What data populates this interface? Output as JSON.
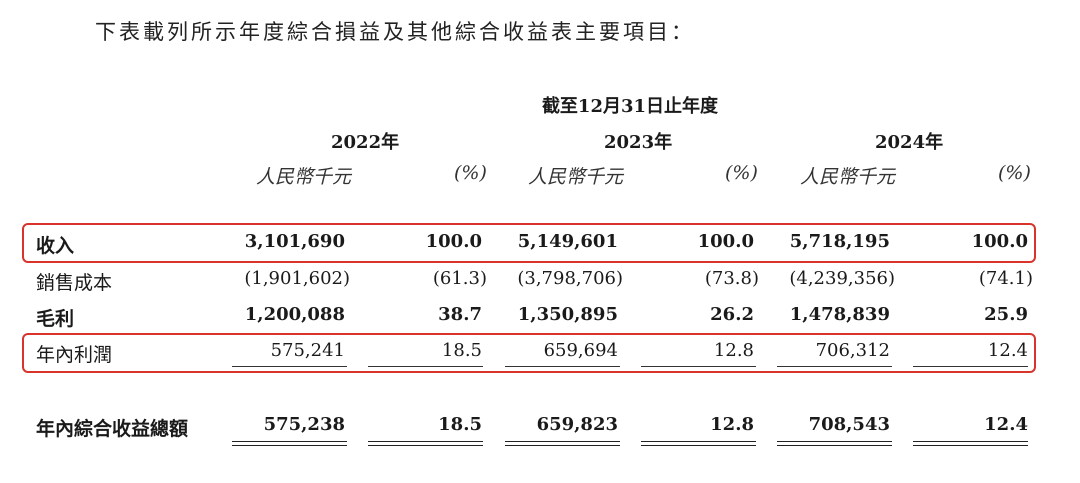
{
  "intro": "下表載列所示年度綜合損益及其他綜合收益表主要項目：",
  "period_header": "截至12月31日止年度",
  "years": [
    "2022年",
    "2023年",
    "2024年"
  ],
  "unit_amount": "人民幣千元",
  "unit_pct": "(%)",
  "rows": [
    {
      "label": "收入",
      "cells": [
        "3,101,690",
        "100.0",
        "5,149,601",
        "100.0",
        "5,718,195",
        "100.0"
      ]
    },
    {
      "label": "銷售成本",
      "cells": [
        "(1,901,602)",
        "(61.3)",
        "(3,798,706)",
        "(73.8)",
        "(4,239,356)",
        "(74.1)"
      ]
    },
    {
      "label": "毛利",
      "cells": [
        "1,200,088",
        "38.7",
        "1,350,895",
        "26.2",
        "1,478,839",
        "25.9"
      ]
    },
    {
      "label": "年內利潤",
      "cells": [
        "575,241",
        "18.5",
        "659,694",
        "12.8",
        "706,312",
        "12.4"
      ]
    },
    {
      "label": "年內綜合收益總額",
      "cells": [
        "575,238",
        "18.5",
        "659,823",
        "12.8",
        "708,543",
        "12.4"
      ]
    }
  ],
  "highlight_color": "#d9342b"
}
